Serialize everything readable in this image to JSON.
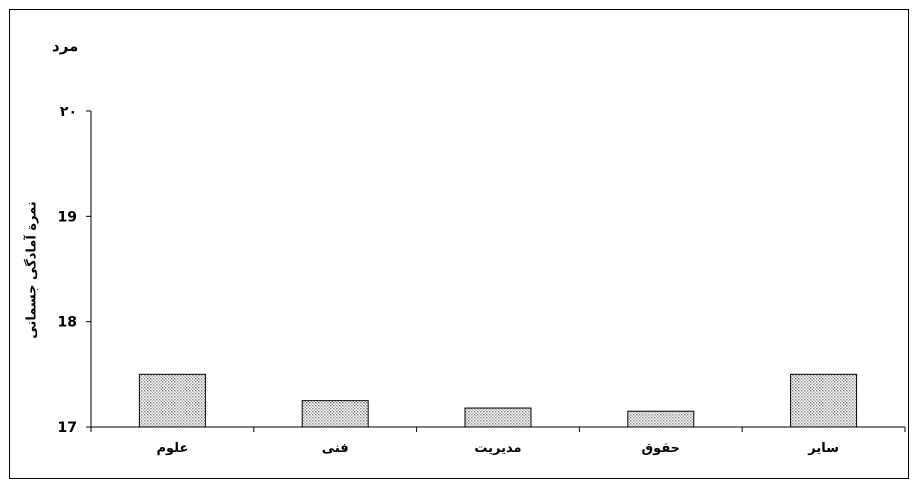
{
  "chart_data": {
    "type": "bar",
    "title": "مرد",
    "xlabel": "",
    "ylabel": "نمرة آمادگی جسمانی",
    "categories": [
      "علوم",
      "فنی",
      "مدیریت",
      "حقوق",
      "سایر"
    ],
    "values": [
      17.5,
      17.25,
      17.18,
      17.15,
      17.5
    ],
    "ylim": [
      17,
      20
    ],
    "yticks": [
      {
        "value": 17,
        "label": "17"
      },
      {
        "value": 18,
        "label": "18"
      },
      {
        "value": 19,
        "label": "19"
      },
      {
        "value": 20,
        "label": "۲۰"
      }
    ],
    "grid": false,
    "legend": "none",
    "bar_color": "#d9d9d9",
    "bar_pattern": "dotted-hatch"
  }
}
